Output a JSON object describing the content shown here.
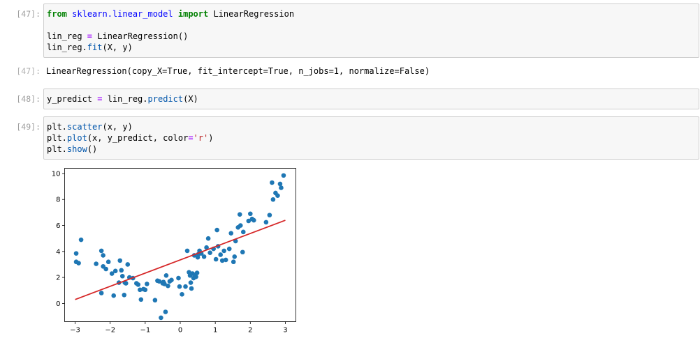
{
  "cells": [
    {
      "prompt": "[47]:",
      "lines": [
        {
          "t1": "from",
          "t2": " ",
          "t3": "sklearn.linear_model",
          "t4": " ",
          "t5": "import",
          "t6": " LinearRegression"
        },
        {
          "a": "lin_reg ",
          "b": "=",
          "c": " LinearRegression()"
        },
        {
          "a": "lin_reg.",
          "b": "fit",
          "c": "(X, y)"
        }
      ]
    },
    {
      "prompt": "[47]:",
      "output": "LinearRegression(copy_X=True, fit_intercept=True, n_jobs=1, normalize=False)"
    },
    {
      "prompt": "[48]:",
      "line": {
        "a": "y_predict ",
        "b": "=",
        "c": " lin_reg.",
        "d": "predict",
        "e": "(X)"
      }
    },
    {
      "prompt": "[49]:",
      "lines": [
        {
          "a": "plt.",
          "b": "scatter",
          "c": "(x, y)"
        },
        {
          "a": "plt.",
          "b": "plot",
          "c": "(x, y_predict, color",
          "d": "=",
          "e": "'r'",
          "f": ")"
        },
        {
          "a": "plt.",
          "b": "show",
          "c": "()"
        }
      ]
    }
  ],
  "chart_data": {
    "type": "scatter",
    "xlim": [
      -3.3,
      3.3
    ],
    "ylim": [
      -1.4,
      10.4
    ],
    "xticks": [
      -3,
      -2,
      -1,
      0,
      1,
      2,
      3
    ],
    "xtick_labels": [
      "−3",
      "−2",
      "−1",
      "0",
      "1",
      "2",
      "3"
    ],
    "yticks": [
      0,
      2,
      4,
      6,
      8,
      10
    ],
    "ytick_labels": [
      "0",
      "2",
      "4",
      "6",
      "8",
      "10"
    ],
    "grid": false,
    "colors": {
      "points": "#1f77b4",
      "line": "#d62728"
    },
    "line": {
      "x": [
        -3.0,
        3.0
      ],
      "y": [
        0.3,
        6.4
      ]
    },
    "points": [
      [
        -2.97,
        3.85
      ],
      [
        -2.97,
        3.2
      ],
      [
        -2.9,
        3.1
      ],
      [
        -2.83,
        4.9
      ],
      [
        -2.4,
        3.05
      ],
      [
        -2.25,
        4.05
      ],
      [
        -2.2,
        3.7
      ],
      [
        -2.2,
        2.85
      ],
      [
        -2.12,
        2.65
      ],
      [
        -2.25,
        0.8
      ],
      [
        -2.05,
        3.2
      ],
      [
        -1.95,
        2.3
      ],
      [
        -1.9,
        0.6
      ],
      [
        -1.85,
        2.5
      ],
      [
        -1.75,
        1.6
      ],
      [
        -1.72,
        3.3
      ],
      [
        -1.68,
        2.55
      ],
      [
        -1.65,
        2.1
      ],
      [
        -1.6,
        0.65
      ],
      [
        -1.58,
        1.6
      ],
      [
        -1.55,
        1.55
      ],
      [
        -1.5,
        3.0
      ],
      [
        -1.45,
        2.0
      ],
      [
        -1.35,
        1.95
      ],
      [
        -1.25,
        1.55
      ],
      [
        -1.2,
        1.45
      ],
      [
        -1.15,
        1.05
      ],
      [
        -1.12,
        0.3
      ],
      [
        -1.05,
        1.1
      ],
      [
        -1.0,
        1.05
      ],
      [
        -0.95,
        1.5
      ],
      [
        -0.72,
        0.25
      ],
      [
        -0.65,
        1.75
      ],
      [
        -0.6,
        1.7
      ],
      [
        -0.55,
        -1.1
      ],
      [
        -0.5,
        1.55
      ],
      [
        -0.48,
        1.65
      ],
      [
        -0.45,
        1.5
      ],
      [
        -0.42,
        -0.65
      ],
      [
        -0.4,
        2.15
      ],
      [
        -0.35,
        1.35
      ],
      [
        -0.3,
        1.7
      ],
      [
        -0.25,
        1.8
      ],
      [
        -0.05,
        1.95
      ],
      [
        -0.02,
        1.3
      ],
      [
        0.05,
        0.7
      ],
      [
        0.15,
        1.3
      ],
      [
        0.2,
        4.05
      ],
      [
        0.25,
        2.4
      ],
      [
        0.28,
        2.15
      ],
      [
        0.3,
        1.6
      ],
      [
        0.32,
        1.15
      ],
      [
        0.35,
        2.3
      ],
      [
        0.38,
        1.95
      ],
      [
        0.4,
        3.7
      ],
      [
        0.42,
        2.2
      ],
      [
        0.45,
        2.05
      ],
      [
        0.48,
        2.35
      ],
      [
        0.5,
        3.55
      ],
      [
        0.52,
        3.8
      ],
      [
        0.55,
        4.05
      ],
      [
        0.6,
        3.85
      ],
      [
        0.68,
        3.6
      ],
      [
        0.75,
        4.3
      ],
      [
        0.8,
        5.0
      ],
      [
        0.85,
        3.9
      ],
      [
        0.95,
        4.2
      ],
      [
        1.02,
        3.4
      ],
      [
        1.05,
        5.65
      ],
      [
        1.08,
        4.4
      ],
      [
        1.15,
        3.75
      ],
      [
        1.2,
        3.3
      ],
      [
        1.25,
        4.05
      ],
      [
        1.3,
        3.35
      ],
      [
        1.4,
        4.2
      ],
      [
        1.45,
        5.4
      ],
      [
        1.52,
        3.2
      ],
      [
        1.55,
        3.6
      ],
      [
        1.58,
        4.8
      ],
      [
        1.65,
        5.85
      ],
      [
        1.7,
        6.85
      ],
      [
        1.72,
        6.0
      ],
      [
        1.78,
        3.95
      ],
      [
        1.8,
        5.5
      ],
      [
        1.95,
        6.35
      ],
      [
        2.0,
        6.9
      ],
      [
        2.05,
        6.5
      ],
      [
        2.1,
        6.4
      ],
      [
        2.45,
        6.25
      ],
      [
        2.55,
        6.8
      ],
      [
        2.62,
        9.3
      ],
      [
        2.65,
        8.0
      ],
      [
        2.72,
        8.5
      ],
      [
        2.78,
        8.3
      ],
      [
        2.85,
        9.2
      ],
      [
        2.88,
        8.9
      ],
      [
        2.95,
        9.85
      ]
    ]
  }
}
